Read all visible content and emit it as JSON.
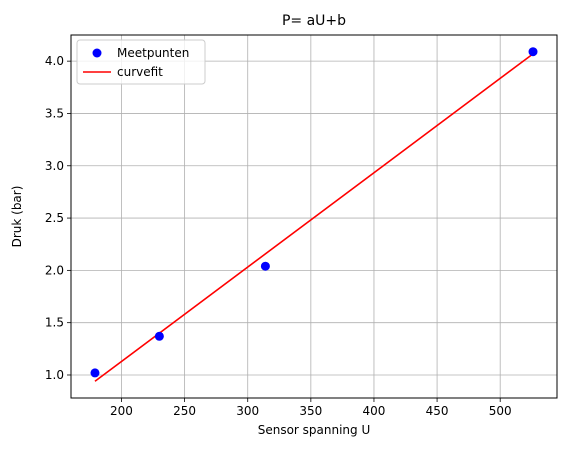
{
  "chart_data": {
    "type": "scatter",
    "title": "P= aU+b",
    "xlabel": "Sensor spanning U",
    "ylabel": "Druk (bar)",
    "xlim": [
      160,
      545
    ],
    "ylim": [
      0.78,
      4.25
    ],
    "xticks": [
      200,
      250,
      300,
      350,
      400,
      450,
      500
    ],
    "yticks": [
      1.0,
      1.5,
      2.0,
      2.5,
      3.0,
      3.5,
      4.0
    ],
    "xtick_labels": [
      "200",
      "250",
      "300",
      "350",
      "400",
      "450",
      "500"
    ],
    "ytick_labels": [
      "1.0",
      "1.5",
      "2.0",
      "2.5",
      "3.0",
      "3.5",
      "4.0"
    ],
    "grid": true,
    "legend_position": "top-left",
    "series": [
      {
        "name": "Meetpunten",
        "kind": "scatter",
        "color": "#0000ff",
        "x": [
          179,
          230,
          314,
          526
        ],
        "y": [
          1.02,
          1.37,
          2.04,
          4.09
        ]
      },
      {
        "name": "curvefit",
        "kind": "line",
        "color": "#ff0000",
        "x": [
          179,
          526
        ],
        "y": [
          0.94,
          4.07
        ]
      }
    ]
  }
}
